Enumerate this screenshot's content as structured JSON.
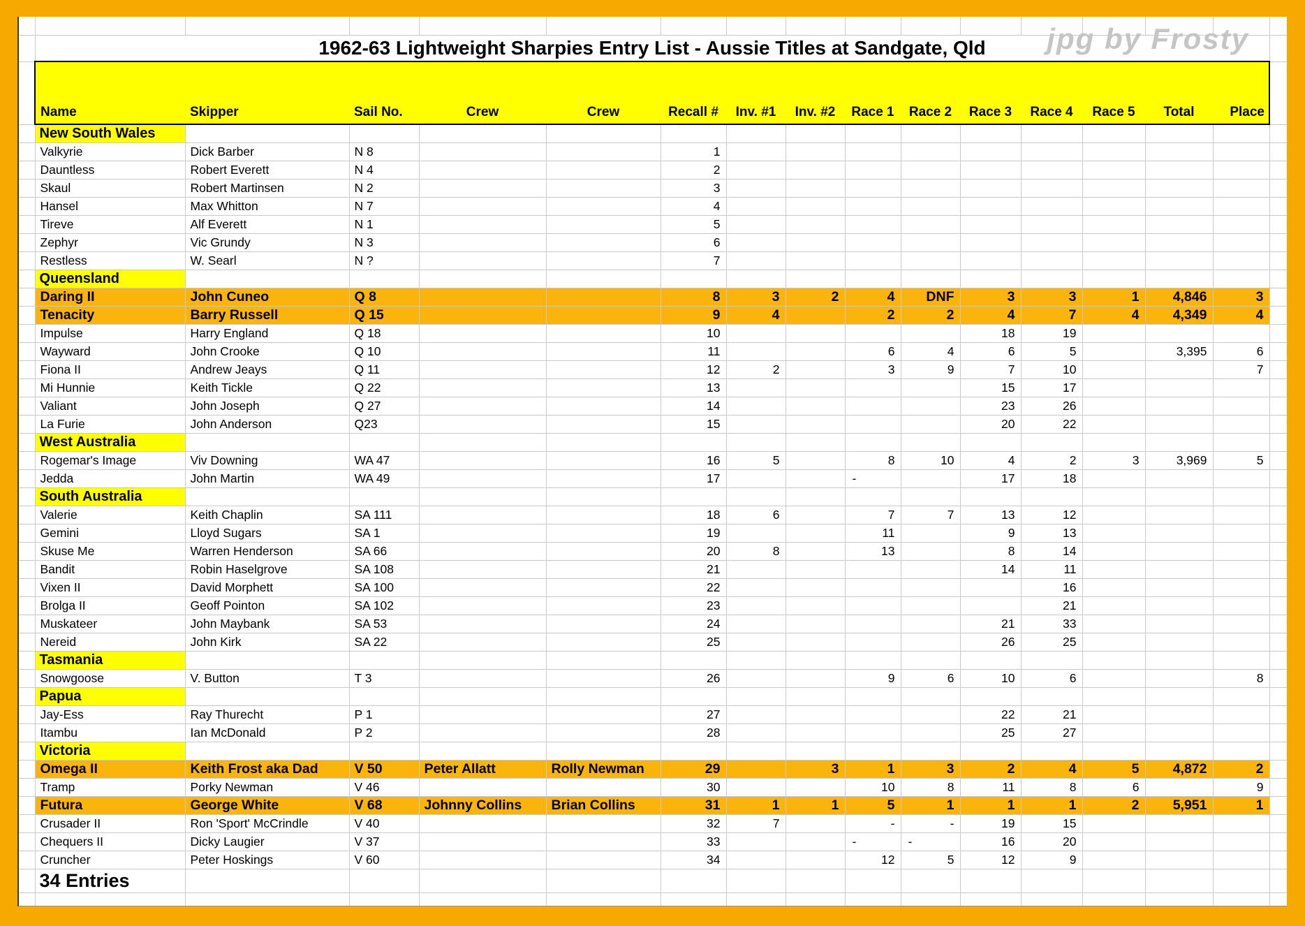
{
  "title": "1962-63 Lightweight Sharpies Entry List - Aussie Titles at Sandgate, Qld",
  "watermark": "jpg by Frosty",
  "footer": "34 Entries",
  "columns": [
    "Name",
    "Skipper",
    "Sail No.",
    "Crew",
    "Crew",
    "Recall #",
    "Inv. #1",
    "Inv. #2",
    "Race 1",
    "Race 2",
    "Race 3",
    "Race 4",
    "Race 5",
    "Total",
    "Place"
  ],
  "colors": {
    "highlight_row": "#FBB40B",
    "section_yellow": "#FFFF00",
    "frame_orange": "#F6AA00",
    "gridline": "#C9C9C9"
  },
  "rows": [
    {
      "t": "s",
      "label": "New South Wales"
    },
    {
      "t": "e",
      "c": [
        "Valkyrie",
        "Dick Barber",
        "N 8",
        "",
        "",
        "1",
        "",
        "",
        "",
        "",
        "",
        "",
        "",
        "",
        ""
      ]
    },
    {
      "t": "e",
      "c": [
        "Dauntless",
        "Robert Everett",
        "N 4",
        "",
        "",
        "2",
        "",
        "",
        "",
        "",
        "",
        "",
        "",
        "",
        ""
      ]
    },
    {
      "t": "e",
      "c": [
        "Skaul",
        "Robert Martinsen",
        "N 2",
        "",
        "",
        "3",
        "",
        "",
        "",
        "",
        "",
        "",
        "",
        "",
        ""
      ]
    },
    {
      "t": "e",
      "c": [
        "Hansel",
        "Max Whitton",
        "N 7",
        "",
        "",
        "4",
        "",
        "",
        "",
        "",
        "",
        "",
        "",
        "",
        ""
      ]
    },
    {
      "t": "e",
      "c": [
        "Tireve",
        "Alf Everett",
        "N 1",
        "",
        "",
        "5",
        "",
        "",
        "",
        "",
        "",
        "",
        "",
        "",
        ""
      ]
    },
    {
      "t": "e",
      "c": [
        "Zephyr",
        "Vic Grundy",
        "N 3",
        "",
        "",
        "6",
        "",
        "",
        "",
        "",
        "",
        "",
        "",
        "",
        ""
      ]
    },
    {
      "t": "e",
      "c": [
        "Restless",
        "W. Searl",
        "N ?",
        "",
        "",
        "7",
        "",
        "",
        "",
        "",
        "",
        "",
        "",
        "",
        ""
      ]
    },
    {
      "t": "s",
      "label": "Queensland"
    },
    {
      "t": "e",
      "h": true,
      "c": [
        "Daring II",
        "John Cuneo",
        "Q 8",
        "",
        "",
        "8",
        "3",
        "2",
        "4",
        "DNF",
        "3",
        "3",
        "1",
        "4,846",
        "3"
      ]
    },
    {
      "t": "e",
      "h": true,
      "c": [
        "Tenacity",
        "Barry Russell",
        "Q 15",
        "",
        "",
        "9",
        "4",
        "",
        "2",
        "2",
        "4",
        "7",
        "4",
        "4,349",
        "4"
      ]
    },
    {
      "t": "e",
      "c": [
        "Impulse",
        "Harry England",
        "Q 18",
        "",
        "",
        "10",
        "",
        "",
        "",
        "",
        "18",
        "19",
        "",
        "",
        ""
      ]
    },
    {
      "t": "e",
      "c": [
        "Wayward",
        "John Crooke",
        "Q 10",
        "",
        "",
        "11",
        "",
        "",
        "6",
        "4",
        "6",
        "5",
        "",
        "3,395",
        "6"
      ]
    },
    {
      "t": "e",
      "c": [
        "Fiona II",
        "Andrew Jeays",
        "Q 11",
        "",
        "",
        "12",
        "2",
        "",
        "3",
        "9",
        "7",
        "10",
        "",
        "",
        "7"
      ]
    },
    {
      "t": "e",
      "c": [
        "Mi Hunnie",
        "Keith Tickle",
        "Q 22",
        "",
        "",
        "13",
        "",
        "",
        "",
        "",
        "15",
        "17",
        "",
        "",
        ""
      ]
    },
    {
      "t": "e",
      "c": [
        "Valiant",
        "John Joseph",
        "Q 27",
        "",
        "",
        "14",
        "",
        "",
        "",
        "",
        "23",
        "26",
        "",
        "",
        ""
      ]
    },
    {
      "t": "e",
      "c": [
        "La Furie",
        "John Anderson",
        "Q23",
        "",
        "",
        "15",
        "",
        "",
        "",
        "",
        "20",
        "22",
        "",
        "",
        ""
      ]
    },
    {
      "t": "s",
      "label": "West Australia"
    },
    {
      "t": "e",
      "c": [
        "Rogemar's Image",
        "Viv Downing",
        "WA 47",
        "",
        "",
        "16",
        "5",
        "",
        "8",
        "10",
        "4",
        "2",
        "3",
        "3,969",
        "5"
      ]
    },
    {
      "t": "e",
      "c": [
        "Jedda",
        "John Martin",
        "WA 49",
        "",
        "",
        "17",
        "",
        "",
        "-",
        "",
        "17",
        "18",
        "",
        "",
        ""
      ],
      "la": [
        8
      ]
    },
    {
      "t": "s",
      "label": "South Australia"
    },
    {
      "t": "e",
      "c": [
        "Valerie",
        "Keith Chaplin",
        "SA 111",
        "",
        "",
        "18",
        "6",
        "",
        "7",
        "7",
        "13",
        "12",
        "",
        "",
        ""
      ]
    },
    {
      "t": "e",
      "c": [
        "Gemini",
        "Lloyd Sugars",
        "SA 1",
        "",
        "",
        "19",
        "",
        "",
        "11",
        "",
        "9",
        "13",
        "",
        "",
        ""
      ]
    },
    {
      "t": "e",
      "c": [
        "Skuse Me",
        "Warren Henderson",
        "SA 66",
        "",
        "",
        "20",
        "8",
        "",
        "13",
        "",
        "8",
        "14",
        "",
        "",
        ""
      ]
    },
    {
      "t": "e",
      "c": [
        "Bandit",
        "Robin Haselgrove",
        "SA 108",
        "",
        "",
        "21",
        "",
        "",
        "",
        "",
        "14",
        "11",
        "",
        "",
        ""
      ]
    },
    {
      "t": "e",
      "c": [
        "Vixen II",
        "David Morphett",
        "SA 100",
        "",
        "",
        "22",
        "",
        "",
        "",
        "",
        "",
        "16",
        "",
        "",
        ""
      ]
    },
    {
      "t": "e",
      "c": [
        "Brolga II",
        "Geoff Pointon",
        "SA 102",
        "",
        "",
        "23",
        "",
        "",
        "",
        "",
        "",
        "21",
        "",
        "",
        ""
      ]
    },
    {
      "t": "e",
      "c": [
        "Muskateer",
        "John Maybank",
        "SA 53",
        "",
        "",
        "24",
        "",
        "",
        "",
        "",
        "21",
        "33",
        "",
        "",
        ""
      ]
    },
    {
      "t": "e",
      "c": [
        "Nereid",
        "John Kirk",
        "SA 22",
        "",
        "",
        "25",
        "",
        "",
        "",
        "",
        "26",
        "25",
        "",
        "",
        ""
      ]
    },
    {
      "t": "s",
      "label": "Tasmania"
    },
    {
      "t": "e",
      "c": [
        "Snowgoose",
        "V. Button",
        "T 3",
        "",
        "",
        "26",
        "",
        "",
        "9",
        "6",
        "10",
        "6",
        "",
        "",
        "8"
      ]
    },
    {
      "t": "s",
      "label": "Papua"
    },
    {
      "t": "e",
      "c": [
        "Jay-Ess",
        "Ray Thurecht",
        "P 1",
        "",
        "",
        "27",
        "",
        "",
        "",
        "",
        "22",
        "21",
        "",
        "",
        ""
      ]
    },
    {
      "t": "e",
      "c": [
        "Itambu",
        "Ian McDonald",
        "P 2",
        "",
        "",
        "28",
        "",
        "",
        "",
        "",
        "25",
        "27",
        "",
        "",
        ""
      ]
    },
    {
      "t": "s",
      "label": "Victoria"
    },
    {
      "t": "e",
      "h": true,
      "c": [
        "Omega II",
        "Keith Frost aka Dad",
        "V 50",
        "Peter Allatt",
        "Rolly Newman",
        "29",
        "",
        "3",
        "1",
        "3",
        "2",
        "4",
        "5",
        "4,872",
        "2"
      ]
    },
    {
      "t": "e",
      "c": [
        "Tramp",
        "Porky Newman",
        "V 46",
        "",
        "",
        "30",
        "",
        "",
        "10",
        "8",
        "11",
        "8",
        "6",
        "",
        "9"
      ]
    },
    {
      "t": "e",
      "h": true,
      "c": [
        "Futura",
        "George White",
        "V 68",
        "Johnny Collins",
        "Brian Collins",
        "31",
        "1",
        "1",
        "5",
        "1",
        "1",
        "1",
        "2",
        "5,951",
        "1"
      ]
    },
    {
      "t": "e",
      "c": [
        "Crusader II",
        "Ron 'Sport' McCrindle",
        "V 40",
        "",
        "",
        "32",
        "7",
        "",
        "-",
        "-",
        "19",
        "15",
        "",
        "",
        ""
      ]
    },
    {
      "t": "e",
      "c": [
        "Chequers II",
        "Dicky Laugier",
        "V 37",
        "",
        "",
        "33",
        "",
        "",
        "-",
        "-",
        "16",
        "20",
        "",
        "",
        ""
      ],
      "la": [
        8,
        9
      ]
    },
    {
      "t": "e",
      "c": [
        "Cruncher",
        "Peter Hoskings",
        "V 60",
        "",
        "",
        "34",
        "",
        "",
        "12",
        "5",
        "12",
        "9",
        "",
        "",
        ""
      ]
    }
  ]
}
